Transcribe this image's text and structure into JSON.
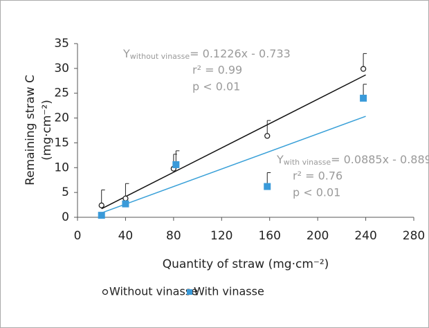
{
  "chart_data": {
    "type": "scatter",
    "xlabel": "Quantity of straw (mg·cm⁻²)",
    "ylabel": [
      "Remaining straw C",
      "(mg·cm⁻²)"
    ],
    "xlim": [
      0,
      280
    ],
    "xticks": [
      0,
      40,
      80,
      120,
      160,
      200,
      240,
      280
    ],
    "ylim": [
      0,
      35
    ],
    "yticks": [
      0,
      5,
      10,
      15,
      20,
      25,
      30,
      35
    ],
    "grid": false,
    "legend": "bottom-left",
    "series": [
      {
        "name": "Without vinasse",
        "marker": "circle",
        "color": "#222222",
        "x": [
          20,
          40,
          80,
          158,
          238
        ],
        "values": [
          2.4,
          3.8,
          9.8,
          16.4,
          29.9
        ],
        "errors": [
          3.1,
          3.0,
          2.9,
          3.1,
          3.1
        ],
        "trend": {
          "x": [
            20,
            240
          ],
          "values": [
            1.72,
            28.69
          ]
        }
      },
      {
        "name": "With vinasse",
        "marker": "square",
        "color": "#3a9ad9",
        "x": [
          20,
          40,
          82,
          158,
          238
        ],
        "values": [
          0.4,
          2.7,
          10.6,
          6.2,
          24.0
        ],
        "errors": [
          0,
          0,
          2.8,
          2.8,
          2.8
        ],
        "trend": {
          "x": [
            20,
            240
          ],
          "values": [
            0.88,
            20.35
          ]
        }
      }
    ],
    "annotations": [
      {
        "y": "Y",
        "subscript": "without vinasse",
        "equation": "= 0.1226x - 0.733",
        "r2": "r² = 0.99",
        "p": "p < 0.01"
      },
      {
        "y": "Y",
        "subscript": "with vinasse",
        "equation": "= 0.0885x - 0.889",
        "r2": "r² = 0.76",
        "p": "p < 0.01"
      }
    ]
  }
}
